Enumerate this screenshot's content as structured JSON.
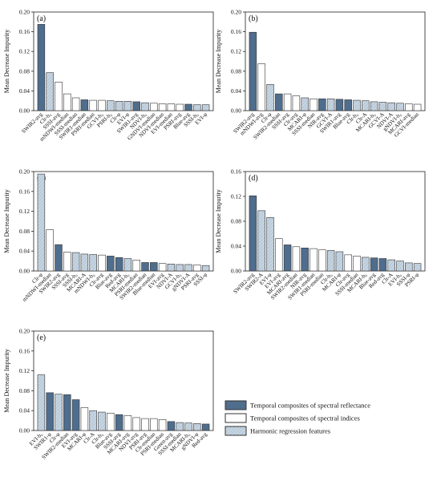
{
  "legend": {
    "items": [
      {
        "label": "Temporal composites of spectral reflectance",
        "cls": "R"
      },
      {
        "label": "Temporal composites of spectral indices",
        "cls": "I"
      },
      {
        "label": "Harmonic regression features",
        "cls": "H"
      }
    ]
  },
  "colors": {
    "R": "#4f6d8d",
    "I": "#ffffff",
    "H": "#b9cad9",
    "edge": "#333333"
  },
  "chart_data": [
    {
      "type": "bar",
      "panel_label": "(a)",
      "ylabel": "Mean Decrease Impurity",
      "ylim": [
        0,
        0.2
      ],
      "yticks": [
        "0.00",
        "0.04",
        "0.08",
        "0.12",
        "0.16",
        "0.20"
      ],
      "categories": [
        "SWIR2-avg",
        "Clr-b₀",
        "SSSI-avg",
        "mNDWI-median",
        "SSSI-median",
        "SWIR1-median",
        "PSRI-median",
        "GCVI-b₀",
        "PSRI-b₀",
        "Clr-φ",
        "EVI-φ",
        "SWIR1-avg",
        "NDVI-b₀",
        "GNDVI-median",
        "NDVI-median",
        "EVI-median",
        "PSRI-avg",
        "Blue-avg",
        "SSSI-b₀",
        "EVI-φ"
      ],
      "values": [
        0.175,
        0.077,
        0.058,
        0.034,
        0.026,
        0.022,
        0.021,
        0.021,
        0.02,
        0.019,
        0.019,
        0.018,
        0.016,
        0.015,
        0.014,
        0.014,
        0.013,
        0.013,
        0.012,
        0.012
      ],
      "classes": [
        "R",
        "H",
        "I",
        "I",
        "I",
        "R",
        "I",
        "I",
        "H",
        "H",
        "H",
        "R",
        "H",
        "I",
        "I",
        "I",
        "I",
        "R",
        "H",
        "H"
      ]
    },
    {
      "type": "bar",
      "panel_label": "(b)",
      "ylabel": "Mean Decrease Impurity",
      "ylim": [
        0,
        0.2
      ],
      "yticks": [
        "0.00",
        "0.04",
        "0.08",
        "0.12",
        "0.16",
        "0.20"
      ],
      "categories": [
        "SWIR2-avg",
        "mNDWI-avg",
        "Clr-φ",
        "SWIR2-median",
        "SSSI-avg",
        "Clr-avg",
        "MCARI-φ",
        "SSSI-median",
        "NIR-avg",
        "GCVI-A",
        "SWIR1-avg",
        "Blue-avg",
        "Clr-b₀",
        "Clr-A",
        "MCARI-b₀",
        "GCVI-A",
        "NDVI-A",
        "gNDVI-b₀",
        "MCARI-avg",
        "GCVI-median"
      ],
      "values": [
        0.159,
        0.095,
        0.053,
        0.034,
        0.034,
        0.03,
        0.026,
        0.024,
        0.024,
        0.024,
        0.023,
        0.022,
        0.021,
        0.02,
        0.018,
        0.017,
        0.016,
        0.015,
        0.014,
        0.013
      ],
      "classes": [
        "R",
        "I",
        "H",
        "R",
        "I",
        "I",
        "H",
        "I",
        "R",
        "H",
        "R",
        "R",
        "H",
        "H",
        "H",
        "H",
        "H",
        "H",
        "I",
        "I"
      ]
    },
    {
      "type": "bar",
      "panel_label": "(c)",
      "ylabel": "Mean Decrease Impurity",
      "ylim": [
        0,
        0.2
      ],
      "yticks": [
        "0.00",
        "0.04",
        "0.08",
        "0.12",
        "0.16",
        "0.20"
      ],
      "categories": [
        "Clr-φ",
        "mNDWI-median",
        "SWIR2-avg",
        "SSSI-avg",
        "SSSI-b₀",
        "MCARI-A",
        "mNDWI-b₀",
        "Clr-avg",
        "Blue-avg",
        "Red-avg",
        "MCARI-b₀",
        "PSRI-median",
        "SWIR2-median",
        "Blue-median",
        "EVI-avg",
        "NDVI-A",
        "GCVI-b₀",
        "gNDVI-A",
        "PSRI-avg",
        "SSSI-φ"
      ],
      "values": [
        0.195,
        0.083,
        0.053,
        0.038,
        0.037,
        0.034,
        0.033,
        0.032,
        0.03,
        0.027,
        0.025,
        0.022,
        0.017,
        0.017,
        0.015,
        0.014,
        0.013,
        0.013,
        0.012,
        0.011
      ],
      "classes": [
        "H",
        "I",
        "R",
        "I",
        "H",
        "H",
        "H",
        "I",
        "R",
        "R",
        "H",
        "I",
        "R",
        "R",
        "I",
        "H",
        "H",
        "H",
        "I",
        "H"
      ]
    },
    {
      "type": "bar",
      "panel_label": "(d)",
      "ylabel": "Mean Decrease Impurity",
      "ylim": [
        0,
        0.16
      ],
      "yticks": [
        "0.00",
        "0.04",
        "0.08",
        "0.12",
        "0.16"
      ],
      "categories": [
        "SWIR2-avg",
        "SWIR2-A",
        "EVI-φ",
        "EVI-avg",
        "MCARI-avg",
        "SWIR2-median",
        "NIR-avg",
        "SWIR1-median",
        "PSRI-median",
        "Clr-b₀",
        "MCARI-φ",
        "Clr-avg",
        "SSSI-median",
        "MCARI-b₀",
        "Blue-avg",
        "Red-avg",
        "Clr-A",
        "EVI-b₀",
        "SSSI-φ",
        "PSRI-φ"
      ],
      "values": [
        0.121,
        0.097,
        0.086,
        0.052,
        0.042,
        0.039,
        0.037,
        0.036,
        0.034,
        0.033,
        0.031,
        0.026,
        0.024,
        0.022,
        0.021,
        0.02,
        0.018,
        0.016,
        0.013,
        0.012
      ],
      "classes": [
        "R",
        "H",
        "H",
        "I",
        "R",
        "I",
        "R",
        "I",
        "I",
        "H",
        "H",
        "I",
        "I",
        "H",
        "R",
        "R",
        "H",
        "H",
        "H",
        "H"
      ]
    },
    {
      "type": "bar",
      "panel_label": "(e)",
      "ylabel": "Mean Decrease Impurity",
      "ylim": [
        0,
        0.2
      ],
      "yticks": [
        "0.00",
        "0.04",
        "0.08",
        "0.12",
        "0.16",
        "0.20"
      ],
      "categories": [
        "EVI-b₀",
        "SWIR1-φ",
        "Clr-φ",
        "SWIR2-median",
        "EVI-avg",
        "MCARI-φ",
        "Clr-A",
        "Clr-b₀",
        "Blue-avg",
        "SSSI-avg",
        "MCARI-avg",
        "NDVI-avg",
        "PSRI-avg",
        "Clr-median",
        "PSRI-median",
        "Green-avg",
        "SSSI-median",
        "MCARI-b₀",
        "gNDVI-φ",
        "Red-avg"
      ],
      "values": [
        0.112,
        0.076,
        0.073,
        0.072,
        0.062,
        0.046,
        0.04,
        0.037,
        0.035,
        0.032,
        0.03,
        0.026,
        0.024,
        0.024,
        0.022,
        0.018,
        0.016,
        0.015,
        0.014,
        0.013
      ],
      "classes": [
        "H",
        "R",
        "H",
        "R",
        "R",
        "I",
        "H",
        "H",
        "I",
        "R",
        "I",
        "I",
        "I",
        "I",
        "I",
        "R",
        "H",
        "H",
        "H",
        "R"
      ]
    }
  ]
}
